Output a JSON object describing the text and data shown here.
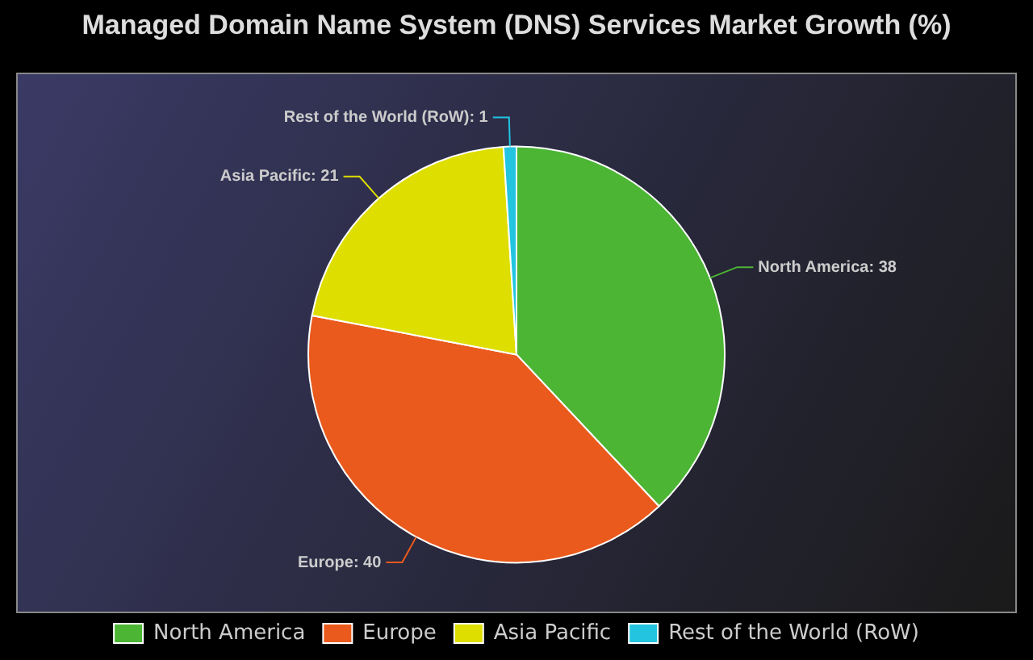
{
  "chart_data": {
    "type": "pie",
    "title": "Managed Domain Name System (DNS) Services Market Growth (%)",
    "categories": [
      "North America",
      "Europe",
      "Asia Pacific",
      "Rest of the World (RoW)"
    ],
    "values": [
      38,
      40,
      21,
      1
    ],
    "colors": [
      "#4cb534",
      "#ea5a1c",
      "#dede00",
      "#22c4e0"
    ],
    "value_labels": [
      "North America: 38",
      "Europe: 40",
      "Asia Pacific: 21",
      "Rest of the World (RoW): 1"
    ],
    "legend": "bottom"
  }
}
